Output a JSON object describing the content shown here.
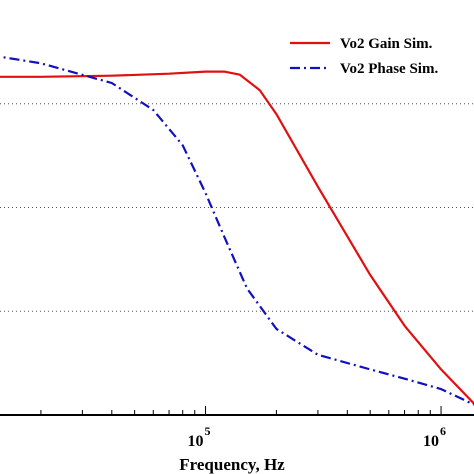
{
  "chart_data": {
    "type": "line",
    "xlabel": "Frequency, Hz",
    "xscale": "log",
    "xlim": [
      10000,
      1380000
    ],
    "ylim": [
      0,
      4
    ],
    "grid": "horizontal dotted",
    "legend_position": "top-right",
    "x_ticks": [
      {
        "value": 100000,
        "base": "10",
        "exp": "5"
      },
      {
        "value": 1000000,
        "base": "10",
        "exp": "6"
      }
    ],
    "series": [
      {
        "name": "Vo2 Gain Sim.",
        "color": "#e01010",
        "style": "solid",
        "x": [
          10000,
          20000,
          40000,
          70000,
          100000,
          120000,
          140000,
          170000,
          200000,
          300000,
          500000,
          700000,
          1000000,
          1380000
        ],
        "y": [
          3.26,
          3.26,
          3.27,
          3.29,
          3.31,
          3.31,
          3.28,
          3.13,
          2.9,
          2.2,
          1.35,
          0.86,
          0.44,
          0.11
        ]
      },
      {
        "name": "Vo2 Phase Sim.",
        "color": "#1010c0",
        "style": "dashdot",
        "x": [
          10000,
          20000,
          40000,
          60000,
          80000,
          100000,
          120000,
          150000,
          200000,
          300000,
          500000,
          700000,
          1000000,
          1380000
        ],
        "y": [
          3.5,
          3.39,
          3.2,
          2.94,
          2.6,
          2.14,
          1.72,
          1.22,
          0.83,
          0.58,
          0.44,
          0.35,
          0.25,
          0.1
        ]
      }
    ]
  }
}
